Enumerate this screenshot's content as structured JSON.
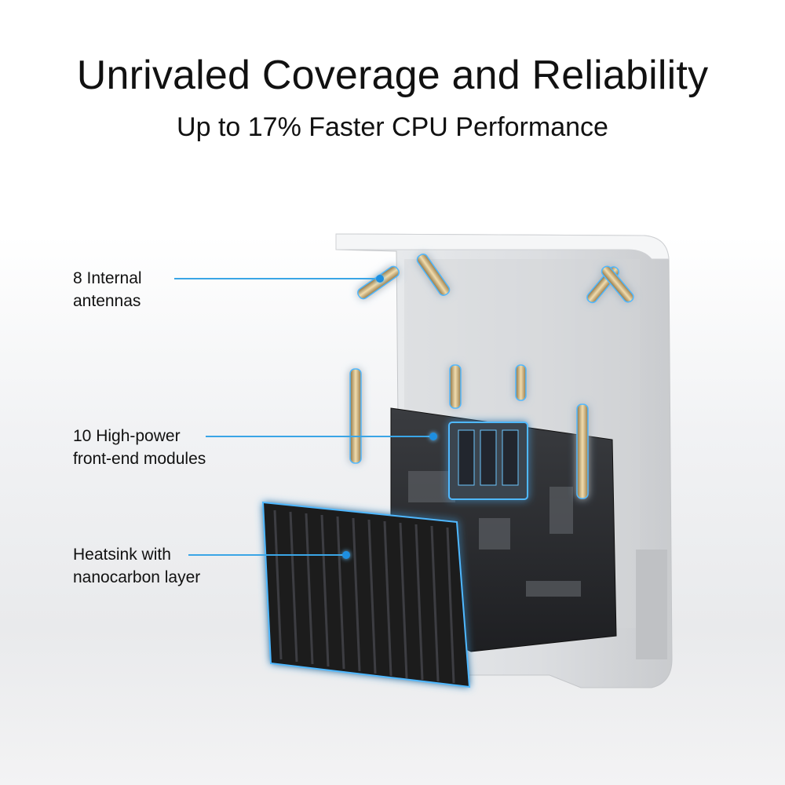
{
  "header": {
    "title": "Unrivaled Coverage and Reliability",
    "subtitle": "Up to 17% Faster CPU Performance"
  },
  "callouts": [
    {
      "line1": "8 Internal",
      "line2": "antennas"
    },
    {
      "line1": "10 High-power",
      "line2": "front-end modules"
    },
    {
      "line1": "Heatsink with",
      "line2": "nanocarbon layer"
    }
  ],
  "colors": {
    "accent": "#3aa5e6",
    "glow": "#4fb8ff",
    "antenna_gold": "#c9a86a",
    "heatsink": "#1b1c1e",
    "pcb": "#2a2c2f",
    "casing": "#e4e5e7"
  }
}
